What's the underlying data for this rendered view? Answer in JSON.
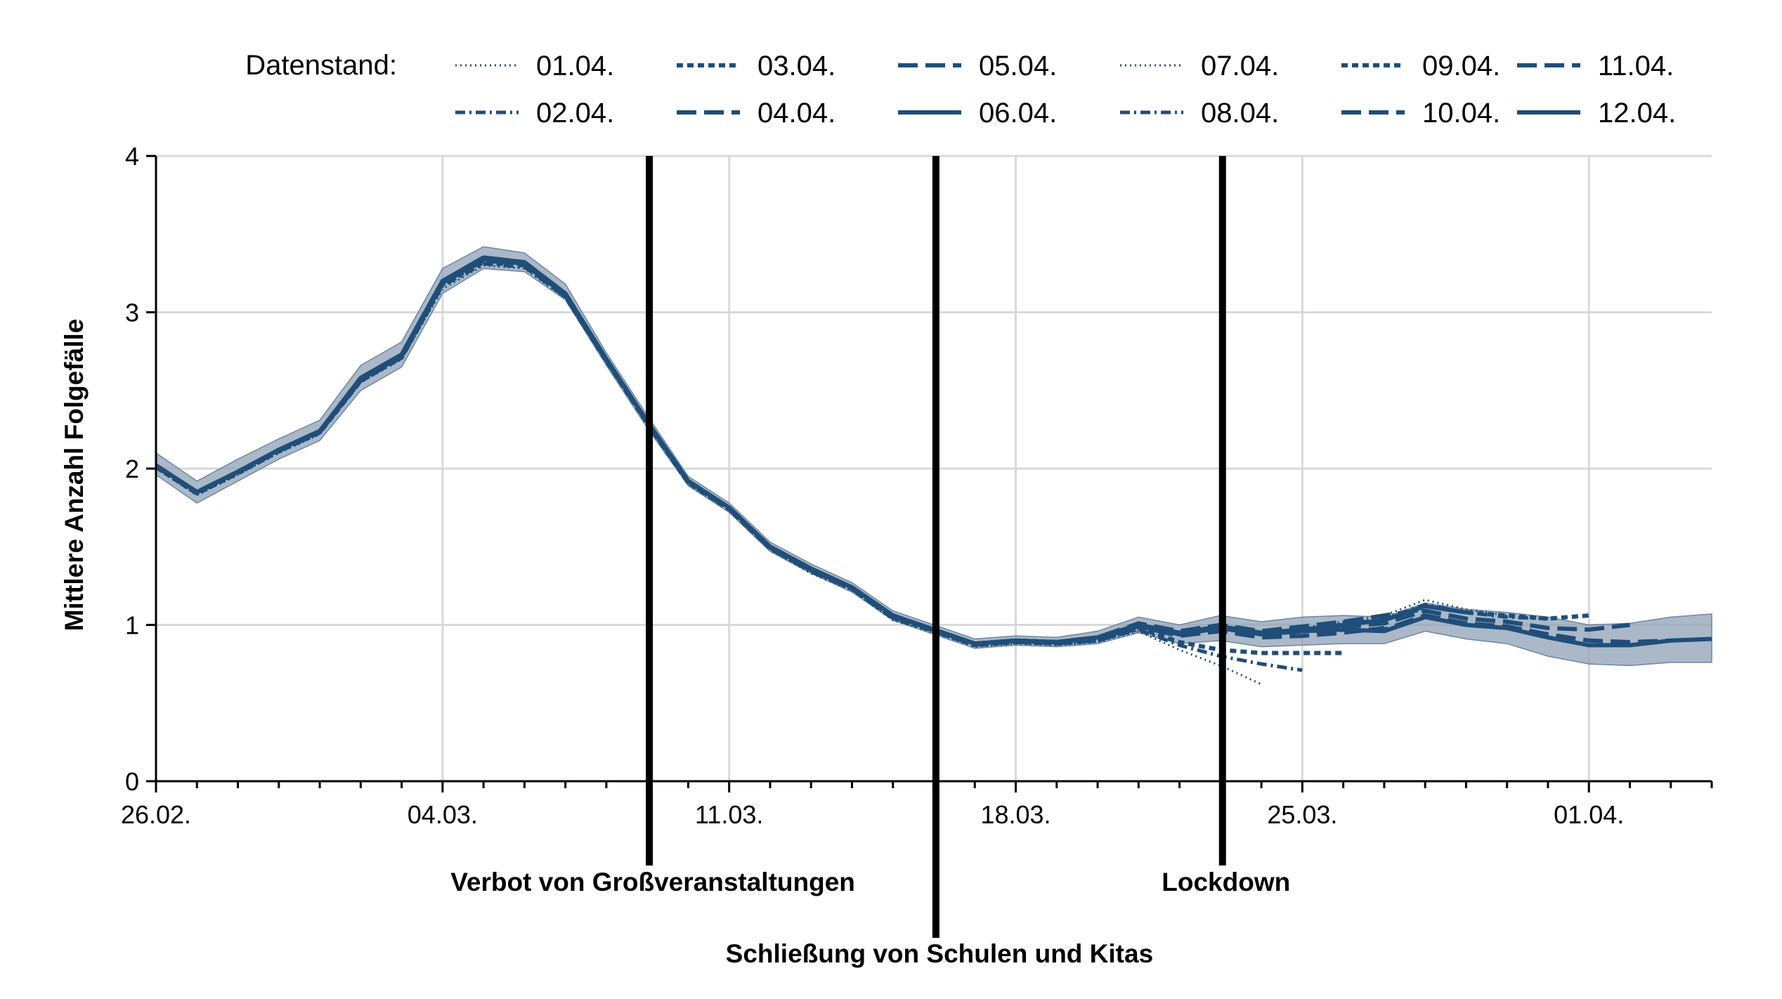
{
  "chart_data": {
    "type": "line",
    "ylabel": "Mittlere Anzahl Folgefälle",
    "xlabel": "",
    "ylim": [
      0,
      4
    ],
    "yticks": [
      0,
      1,
      2,
      3,
      4
    ],
    "x_tick_labels": [
      "26.02.",
      "04.03.",
      "11.03.",
      "18.03.",
      "25.03.",
      "01.04."
    ],
    "x_dates": [
      "26.02.",
      "27.02.",
      "28.02.",
      "29.02.",
      "01.03.",
      "02.03.",
      "03.03.",
      "04.03.",
      "05.03.",
      "06.03.",
      "07.03.",
      "08.03.",
      "09.03.",
      "10.03.",
      "11.03.",
      "12.03.",
      "13.03.",
      "14.03.",
      "15.03.",
      "16.03.",
      "17.03.",
      "18.03.",
      "19.03.",
      "20.03.",
      "21.03.",
      "22.03.",
      "23.03.",
      "24.03.",
      "25.03.",
      "26.03.",
      "27.03.",
      "28.03.",
      "29.03.",
      "30.03.",
      "31.03.",
      "01.04.",
      "02.04.",
      "03.04.",
      "04.04."
    ],
    "legend": {
      "title": "Datenstand:",
      "placement": "top"
    },
    "grid": true,
    "base_values": [
      2.02,
      1.85,
      1.98,
      2.12,
      2.24,
      2.58,
      2.73,
      3.2,
      3.35,
      3.32,
      3.12,
      2.7,
      2.3,
      1.92,
      1.75,
      1.5,
      1.36,
      1.24,
      1.06,
      0.97,
      0.88,
      0.9,
      0.89,
      0.92,
      1.0,
      0.94,
      0.98,
      0.94,
      0.96,
      0.97,
      0.96,
      1.05,
      1.0,
      0.98,
      0.92,
      0.87,
      0.87,
      0.9,
      0.91
    ],
    "ci_lower": [
      1.96,
      1.78,
      1.92,
      2.06,
      2.18,
      2.5,
      2.65,
      3.12,
      3.28,
      3.26,
      3.08,
      2.66,
      2.26,
      1.89,
      1.72,
      1.47,
      1.33,
      1.21,
      1.03,
      0.94,
      0.85,
      0.87,
      0.86,
      0.88,
      0.95,
      0.88,
      0.9,
      0.86,
      0.87,
      0.88,
      0.88,
      0.96,
      0.91,
      0.88,
      0.8,
      0.75,
      0.74,
      0.76,
      0.76
    ],
    "ci_upper": [
      2.1,
      1.92,
      2.06,
      2.19,
      2.31,
      2.66,
      2.81,
      3.28,
      3.42,
      3.38,
      3.18,
      2.74,
      2.34,
      1.95,
      1.78,
      1.53,
      1.39,
      1.27,
      1.09,
      1.0,
      0.91,
      0.93,
      0.92,
      0.96,
      1.05,
      1.0,
      1.06,
      1.02,
      1.05,
      1.06,
      1.05,
      1.14,
      1.1,
      1.08,
      1.05,
      1.0,
      1.01,
      1.05,
      1.07
    ],
    "series": [
      {
        "name": "01.04.",
        "dash": "dotted",
        "width": 3,
        "values": [
          2.0,
          1.83,
          1.96,
          2.1,
          2.22,
          2.55,
          2.7,
          3.15,
          3.3,
          3.28,
          3.09,
          2.68,
          2.28,
          1.9,
          1.73,
          1.48,
          1.33,
          1.22,
          1.03,
          0.95,
          0.86,
          0.88,
          0.87,
          0.89,
          0.96,
          0.84,
          0.74,
          0.62
        ]
      },
      {
        "name": "02.04.",
        "dash": "dashdot",
        "width": 5,
        "values": [
          2.01,
          1.84,
          1.97,
          2.11,
          2.23,
          2.56,
          2.71,
          3.17,
          3.31,
          3.29,
          3.1,
          2.69,
          2.29,
          1.91,
          1.74,
          1.49,
          1.34,
          1.23,
          1.04,
          0.96,
          0.87,
          0.89,
          0.88,
          0.9,
          0.97,
          0.87,
          0.8,
          0.75,
          0.71
        ]
      },
      {
        "name": "03.04.",
        "dash": "dense",
        "width": 6,
        "values": [
          2.01,
          1.84,
          1.97,
          2.11,
          2.23,
          2.56,
          2.71,
          3.18,
          3.32,
          3.3,
          3.1,
          2.69,
          2.29,
          1.91,
          1.74,
          1.49,
          1.35,
          1.23,
          1.05,
          0.96,
          0.87,
          0.89,
          0.88,
          0.9,
          0.98,
          0.89,
          0.84,
          0.82,
          0.82,
          0.82
        ]
      },
      {
        "name": "04.04.",
        "dash": "longdash",
        "width": 6,
        "values": [
          2.02,
          1.85,
          1.98,
          2.12,
          2.24,
          2.57,
          2.72,
          3.19,
          3.33,
          3.31,
          3.11,
          2.7,
          2.3,
          1.92,
          1.75,
          1.5,
          1.35,
          1.24,
          1.05,
          0.97,
          0.88,
          0.9,
          0.89,
          0.91,
          0.99,
          0.93,
          0.96,
          0.92,
          0.93,
          0.95,
          0.98
        ]
      },
      {
        "name": "05.04.",
        "dash": "longdash",
        "width": 6,
        "values": [
          2.02,
          1.85,
          1.98,
          2.12,
          2.24,
          2.57,
          2.72,
          3.19,
          3.33,
          3.31,
          3.11,
          2.7,
          2.3,
          1.92,
          1.75,
          1.5,
          1.36,
          1.24,
          1.06,
          0.97,
          0.88,
          0.9,
          0.89,
          0.92,
          1.01,
          0.96,
          1.0,
          0.96,
          0.99,
          1.02,
          1.06,
          1.1
        ]
      },
      {
        "name": "06.04.",
        "dash": "solid",
        "width": 6,
        "values": [
          2.02,
          1.85,
          1.98,
          2.12,
          2.24,
          2.57,
          2.72,
          3.19,
          3.34,
          3.31,
          3.11,
          2.7,
          2.3,
          1.92,
          1.75,
          1.5,
          1.36,
          1.24,
          1.06,
          0.97,
          0.88,
          0.9,
          0.89,
          0.92,
          1.0,
          0.95,
          0.99,
          0.95,
          0.97,
          1.0,
          1.03,
          1.12,
          1.08
        ]
      },
      {
        "name": "07.04.",
        "dash": "dotted",
        "width": 3,
        "values": [
          2.02,
          1.85,
          1.98,
          2.12,
          2.24,
          2.57,
          2.72,
          3.19,
          3.34,
          3.31,
          3.11,
          2.7,
          2.3,
          1.92,
          1.75,
          1.5,
          1.36,
          1.24,
          1.06,
          0.97,
          0.88,
          0.9,
          0.89,
          0.92,
          0.99,
          0.94,
          0.98,
          0.95,
          0.98,
          1.02,
          1.06,
          1.16,
          1.1,
          1.06
        ]
      },
      {
        "name": "08.04.",
        "dash": "dashdot",
        "width": 5,
        "values": [
          2.02,
          1.85,
          1.98,
          2.12,
          2.24,
          2.57,
          2.72,
          3.19,
          3.34,
          3.31,
          3.11,
          2.7,
          2.3,
          1.92,
          1.75,
          1.5,
          1.36,
          1.24,
          1.06,
          0.97,
          0.88,
          0.9,
          0.89,
          0.92,
          0.99,
          0.94,
          0.98,
          0.95,
          0.97,
          1.0,
          1.04,
          1.13,
          1.08,
          1.05,
          1.04
        ]
      },
      {
        "name": "09.04.",
        "dash": "dense",
        "width": 6,
        "values": [
          2.02,
          1.85,
          1.98,
          2.12,
          2.24,
          2.57,
          2.72,
          3.2,
          3.35,
          3.32,
          3.12,
          2.7,
          2.3,
          1.92,
          1.75,
          1.5,
          1.36,
          1.24,
          1.06,
          0.97,
          0.88,
          0.9,
          0.89,
          0.92,
          0.99,
          0.94,
          0.98,
          0.94,
          0.97,
          1.0,
          1.03,
          1.12,
          1.08,
          1.06,
          1.04,
          1.06
        ]
      },
      {
        "name": "10.04.",
        "dash": "longdash",
        "width": 6,
        "values": [
          2.02,
          1.85,
          1.98,
          2.12,
          2.24,
          2.57,
          2.72,
          3.2,
          3.35,
          3.32,
          3.12,
          2.7,
          2.3,
          1.92,
          1.75,
          1.5,
          1.36,
          1.24,
          1.06,
          0.97,
          0.88,
          0.9,
          0.89,
          0.92,
          0.99,
          0.94,
          0.98,
          0.94,
          0.96,
          0.99,
          1.01,
          1.09,
          1.04,
          1.02,
          0.98,
          0.97,
          1.0
        ]
      },
      {
        "name": "11.04.",
        "dash": "longdash",
        "width": 6,
        "values": [
          2.02,
          1.85,
          1.98,
          2.12,
          2.24,
          2.58,
          2.73,
          3.2,
          3.35,
          3.32,
          3.12,
          2.7,
          2.3,
          1.92,
          1.75,
          1.5,
          1.36,
          1.24,
          1.06,
          0.97,
          0.88,
          0.9,
          0.89,
          0.92,
          1.0,
          0.94,
          0.98,
          0.94,
          0.96,
          0.97,
          0.97,
          1.06,
          1.01,
          0.99,
          0.94,
          0.9,
          0.89,
          0.9
        ]
      },
      {
        "name": "12.04.",
        "dash": "solid",
        "width": 6,
        "values": [
          2.02,
          1.85,
          1.98,
          2.12,
          2.24,
          2.58,
          2.73,
          3.2,
          3.35,
          3.32,
          3.12,
          2.7,
          2.3,
          1.92,
          1.75,
          1.5,
          1.36,
          1.24,
          1.06,
          0.97,
          0.88,
          0.9,
          0.89,
          0.92,
          1.0,
          0.94,
          0.98,
          0.94,
          0.96,
          0.97,
          0.96,
          1.05,
          1.0,
          0.98,
          0.92,
          0.87,
          0.87,
          0.9,
          0.91
        ]
      }
    ],
    "events": [
      {
        "label": "Verbot von Großveranstaltungen",
        "date_index": 12,
        "label_row": 1
      },
      {
        "label": "Schließung von Schulen und Kitas",
        "date_index": 19,
        "label_row": 2
      },
      {
        "label": "Lockdown",
        "date_index": 26,
        "label_row": 1
      }
    ],
    "colors": {
      "line": "#1f4e79",
      "band": "#8da0b6",
      "grid": "#d9d9d9",
      "event": "#000000"
    }
  }
}
